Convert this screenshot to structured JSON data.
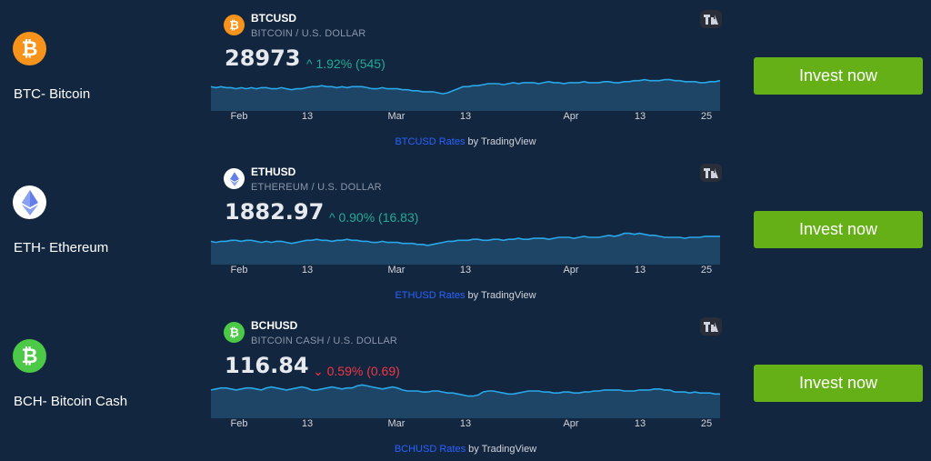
{
  "colors": {
    "background": "#13263f",
    "invest_button": "#66b017",
    "change_up": "#22ab94",
    "change_down": "#f23645",
    "chart_line": "#2aa7e8",
    "chart_fill": "#1e4566",
    "btc": "#f7931a",
    "eth": "#ffffff",
    "bch": "#4cc947"
  },
  "assets": [
    {
      "icon": "bitcoin-icon",
      "label": "BTC- Bitcoin",
      "symbol": "BTCUSD",
      "description": "BITCOIN / U.S. DOLLAR",
      "price": "28973",
      "change": "1.92% (545)",
      "direction": "up",
      "arrow": "^",
      "months": [
        "Feb",
        "13",
        "Mar",
        "13",
        "Apr",
        "13",
        "25"
      ],
      "attribution_link": "BTCUSD Rates",
      "attribution_suffix": " by TradingView",
      "invest_label": "Invest now",
      "sparkline": [
        24,
        23,
        24,
        23,
        23,
        22,
        23,
        22,
        23,
        22,
        23,
        23,
        22,
        22,
        23,
        22,
        21,
        22,
        22,
        23,
        24,
        24,
        25,
        24,
        24,
        23,
        24,
        23,
        24,
        24,
        24,
        23,
        22,
        22,
        23,
        22,
        22,
        22,
        21,
        21,
        20,
        20,
        19,
        19,
        19,
        18,
        17,
        18,
        20,
        22,
        24,
        24,
        25,
        25,
        26,
        27,
        27,
        27,
        26,
        27,
        28,
        27,
        28,
        28,
        28,
        27,
        28,
        29,
        28,
        28,
        27,
        28,
        28,
        28,
        29,
        28,
        28,
        28,
        29,
        29,
        28,
        28,
        29,
        29,
        30,
        30,
        31,
        30,
        30,
        30,
        31,
        31,
        30,
        30,
        29,
        29,
        29,
        28,
        28,
        29,
        29,
        30
      ]
    },
    {
      "icon": "ethereum-icon",
      "label": "ETH- Ethereum",
      "symbol": "ETHUSD",
      "description": "ETHEREUM / U.S. DOLLAR",
      "price": "1882.97",
      "change": "0.90% (16.83)",
      "direction": "up",
      "arrow": "^",
      "months": [
        "Feb",
        "13",
        "Mar",
        "13",
        "Apr",
        "13",
        "25"
      ],
      "attribution_link": "ETHUSD Rates",
      "attribution_suffix": " by TradingView",
      "invest_label": "Invest now",
      "sparkline": [
        23,
        22,
        23,
        23,
        24,
        24,
        23,
        24,
        24,
        23,
        22,
        23,
        22,
        23,
        23,
        22,
        21,
        22,
        23,
        24,
        24,
        25,
        24,
        24,
        23,
        24,
        24,
        25,
        24,
        24,
        23,
        23,
        22,
        22,
        23,
        22,
        22,
        22,
        21,
        21,
        21,
        20,
        20,
        19,
        20,
        21,
        22,
        23,
        23,
        24,
        24,
        24,
        25,
        25,
        24,
        24,
        25,
        25,
        24,
        25,
        25,
        26,
        25,
        25,
        26,
        26,
        26,
        25,
        26,
        27,
        27,
        27,
        26,
        27,
        28,
        27,
        27,
        27,
        28,
        29,
        28,
        29,
        31,
        31,
        30,
        31,
        30,
        29,
        29,
        28,
        27,
        27,
        27,
        27,
        26,
        27,
        27,
        27,
        28,
        28,
        28,
        28
      ]
    },
    {
      "icon": "bitcoin-cash-icon",
      "label": "BCH- Bitcoin Cash",
      "symbol": "BCHUSD",
      "description": "BITCOIN CASH / U.S. DOLLAR",
      "price": "116.84",
      "change": "0.59% (0.69)",
      "direction": "down",
      "arrow": "⌄",
      "months": [
        "Feb",
        "13",
        "Mar",
        "13",
        "Apr",
        "13",
        "25"
      ],
      "attribution_link": "BCHUSD Rates",
      "attribution_suffix": " by TradingView",
      "invest_label": "Invest now",
      "sparkline": [
        28,
        29,
        30,
        30,
        29,
        28,
        29,
        30,
        30,
        29,
        28,
        30,
        31,
        30,
        29,
        28,
        29,
        30,
        31,
        30,
        28,
        28,
        29,
        30,
        31,
        30,
        29,
        30,
        30,
        32,
        33,
        32,
        31,
        30,
        29,
        30,
        31,
        30,
        28,
        27,
        27,
        27,
        26,
        26,
        27,
        27,
        26,
        25,
        25,
        24,
        23,
        22,
        22,
        23,
        26,
        27,
        27,
        26,
        25,
        24,
        24,
        25,
        26,
        27,
        27,
        27,
        26,
        26,
        25,
        25,
        26,
        26,
        25,
        25,
        26,
        26,
        27,
        27,
        28,
        28,
        28,
        28,
        27,
        27,
        27,
        28,
        28,
        28,
        29,
        29,
        28,
        28,
        26,
        26,
        26,
        25,
        26,
        25,
        25,
        25,
        24,
        24
      ]
    }
  ]
}
